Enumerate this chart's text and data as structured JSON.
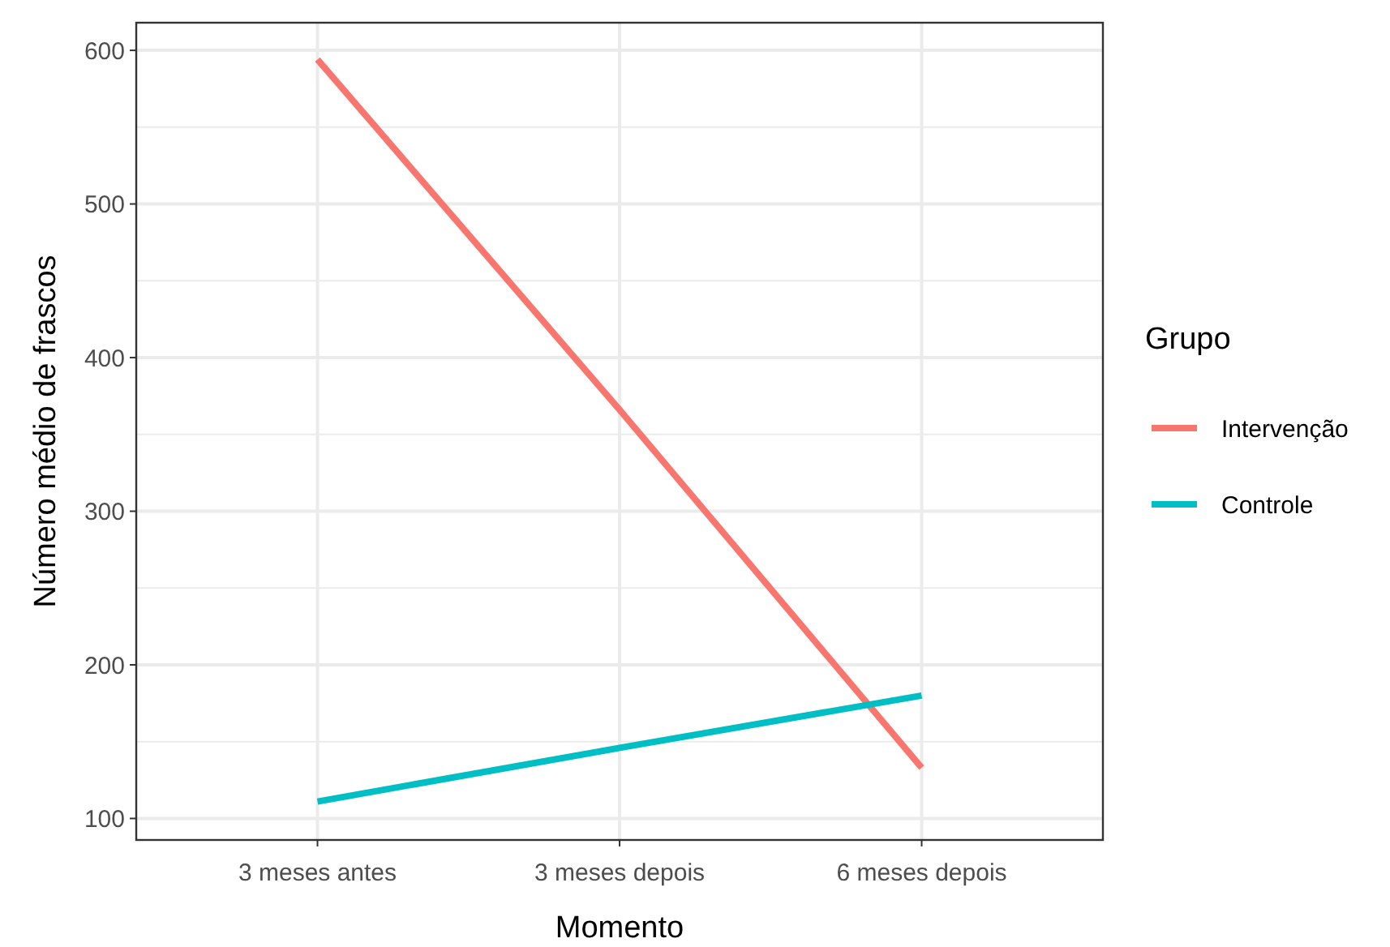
{
  "chart_data": {
    "type": "line",
    "xlabel": "Momento",
    "ylabel": "Número médio de frascos",
    "legend_title": "Grupo",
    "categories": [
      "3 meses antes",
      "3 meses depois",
      "6 meses depois"
    ],
    "series": [
      {
        "name": "Intervenção",
        "color": "#f8766d",
        "values": [
          594,
          366,
          133
        ]
      },
      {
        "name": "Controle",
        "color": "#00bfc4",
        "values": [
          111,
          146,
          180
        ]
      }
    ],
    "ylim": [
      86,
      618
    ],
    "yticks": [
      100,
      200,
      300,
      400,
      500,
      600
    ],
    "grid": true,
    "legend": "right",
    "marker": "none",
    "line_style": "solid"
  }
}
